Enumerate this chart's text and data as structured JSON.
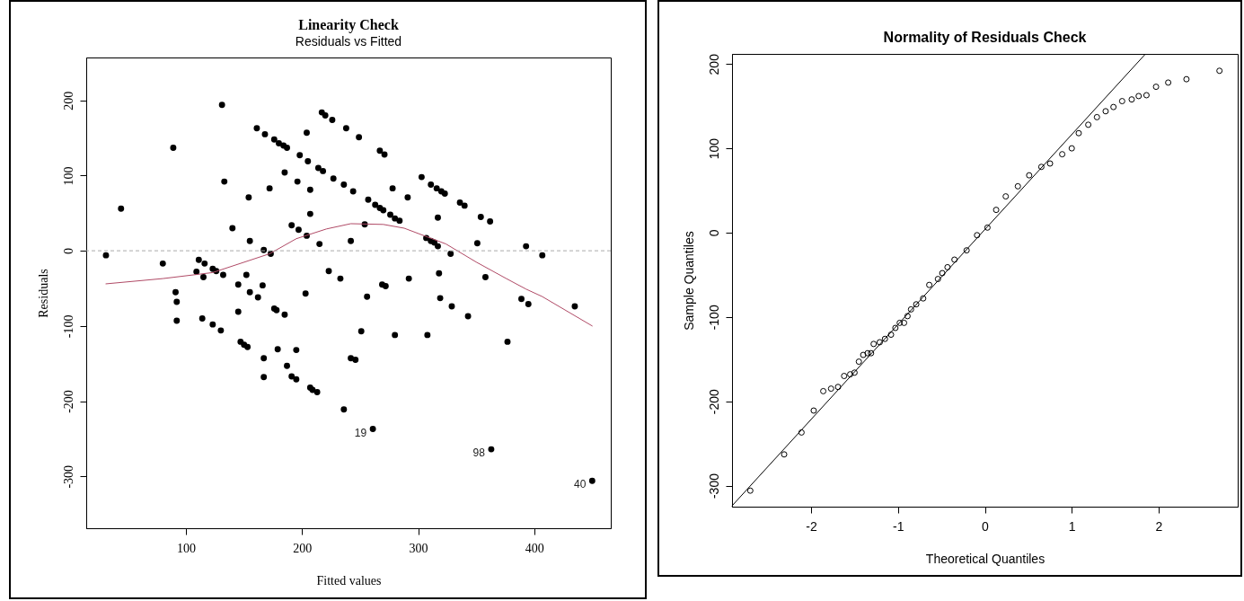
{
  "chart_data": [
    {
      "type": "scatter",
      "title": "Linearity Check",
      "subtitle": "Residuals vs Fitted",
      "xlabel": "Fitted values",
      "ylabel": "Residuals",
      "xlim": [
        14,
        466
      ],
      "ylim": [
        -369,
        257
      ],
      "xticks": [
        100,
        200,
        300,
        400
      ],
      "yticks": [
        -300,
        -200,
        -100,
        0,
        100,
        200
      ],
      "grid": false,
      "ref_lines": [
        {
          "axis": "y",
          "value": 0,
          "color": "#aaaaaa",
          "line_style": "dashed"
        }
      ],
      "annotations": [
        {
          "text": "19",
          "x": 261,
          "y": -237
        },
        {
          "text": "98",
          "x": 363,
          "y": -264
        },
        {
          "text": "40",
          "x": 450,
          "y": -306
        }
      ],
      "series": [
        {
          "type": "scatter",
          "marker": "circle",
          "color": "#000000",
          "x": [
            31,
            44,
            89,
            80,
            131,
            133,
            111,
            116,
            109,
            115,
            123,
            126,
            132,
            140,
            154,
            155,
            152,
            145,
            155,
            166,
            161,
            168,
            176,
            180,
            184,
            187,
            185,
            172,
            167,
            173,
            191,
            197,
            204,
            196,
            198,
            204,
            205,
            207,
            207,
            203,
            217,
            220,
            226,
            238,
            249,
            267,
            271,
            214,
            218,
            227,
            236,
            244,
            257,
            263,
            267,
            270,
            276,
            280,
            284,
            278,
            291,
            303,
            311,
            316,
            320,
            323,
            336,
            340,
            354,
            362,
            317,
            215,
            242,
            254,
            307,
            311,
            314,
            317,
            328,
            351,
            393,
            407,
            223,
            233,
            269,
            272,
            292,
            318,
            358,
            91,
            92,
            92,
            114,
            123,
            130,
            145,
            162,
            147,
            150,
            153,
            167,
            167,
            176,
            178,
            185,
            179,
            195,
            187,
            191,
            195,
            207,
            209,
            213,
            236,
            242,
            246,
            251,
            256,
            261,
            280,
            308,
            319,
            329,
            343,
            363,
            377,
            389,
            395,
            435,
            450
          ],
          "values": [
            -6,
            56,
            137,
            -17,
            194,
            92,
            -12,
            -17,
            -28,
            -35,
            -24,
            -27,
            -32,
            30,
            71,
            13,
            -32,
            -45,
            -55,
            -46,
            163,
            155,
            148,
            143,
            140,
            137,
            104,
            83,
            1,
            -4,
            34,
            28,
            20,
            92,
            127,
            157,
            119,
            81,
            49,
            -57,
            184,
            180,
            174,
            163,
            151,
            133,
            128,
            110,
            106,
            96,
            88,
            79,
            68,
            61,
            57,
            54,
            48,
            43,
            40,
            83,
            71,
            98,
            88,
            83,
            79,
            76,
            64,
            60,
            45,
            39,
            44,
            9,
            13,
            35,
            17,
            13,
            11,
            6,
            -4,
            10,
            6,
            -6,
            -27,
            -37,
            -45,
            -47,
            -37,
            -30,
            -35,
            -55,
            -68,
            -93,
            -90,
            -98,
            -106,
            -81,
            -62,
            -121,
            -125,
            -128,
            -143,
            -168,
            -77,
            -79,
            -85,
            -131,
            -132,
            -153,
            -167,
            -171,
            -182,
            -185,
            -188,
            -211,
            -143,
            -145,
            -107,
            -61,
            -237,
            -112,
            -112,
            -63,
            -74,
            -87,
            -264,
            -121,
            -64,
            -71,
            -74,
            -306
          ]
        },
        {
          "type": "line",
          "color": "#b04a66",
          "x": [
            31,
            80,
            123,
            172,
            195,
            203,
            221,
            242,
            270,
            288,
            324,
            350,
            376,
            393,
            407,
            450
          ],
          "values": [
            -44,
            -37,
            -29,
            -4,
            16,
            20,
            29,
            36,
            35,
            30,
            9,
            -15,
            -37,
            -51,
            -61,
            -100
          ]
        }
      ]
    },
    {
      "type": "scatter",
      "title": "Normality of Residuals Check",
      "xlabel": "Theoretical Quantiles",
      "ylabel": "Sample Quantiles",
      "xlim": [
        -2.91,
        2.91
      ],
      "ylim": [
        -325,
        212
      ],
      "xticks": [
        -2,
        -1,
        0,
        1,
        2
      ],
      "yticks": [
        -300,
        -200,
        -100,
        0,
        100,
        200
      ],
      "grid": false,
      "series": [
        {
          "type": "scatter",
          "marker": "circle",
          "color": "#000000",
          "x": [
            -2.7,
            -2.31,
            -2.11,
            -1.97,
            -1.86,
            -1.77,
            -1.69,
            -1.62,
            -1.55,
            -1.5,
            -1.45,
            -1.4,
            -1.35,
            -1.31,
            -1.28,
            -1.21,
            -1.15,
            -1.08,
            -1.03,
            -0.98,
            -0.93,
            -0.89,
            -0.85,
            -0.79,
            -0.71,
            -0.64,
            -0.54,
            -0.49,
            -0.43,
            -0.35,
            -0.21,
            -0.09,
            0.03,
            0.13,
            0.24,
            0.38,
            0.51,
            0.65,
            0.75,
            0.89,
            1.0,
            1.08,
            1.19,
            1.29,
            1.39,
            1.48,
            1.58,
            1.69,
            1.77,
            1.86,
            1.97,
            2.11,
            2.32,
            2.7
          ],
          "values": [
            -306,
            -263,
            -237,
            -211,
            -188,
            -185,
            -183,
            -170,
            -168,
            -166,
            -153,
            -145,
            -143,
            -143,
            -132,
            -130,
            -126,
            -121,
            -113,
            -107,
            -107,
            -99,
            -91,
            -85,
            -78,
            -62,
            -55,
            -48,
            -41,
            -32,
            -21,
            -3,
            6,
            27,
            43,
            55,
            68,
            78,
            82,
            93,
            100,
            118,
            128,
            137,
            144,
            149,
            156,
            158,
            162,
            163,
            173,
            178,
            182,
            192
          ]
        },
        {
          "type": "line",
          "color": "#000000",
          "x": [
            -2.91,
            1.84
          ],
          "values": [
            -324,
            211
          ]
        }
      ]
    }
  ]
}
